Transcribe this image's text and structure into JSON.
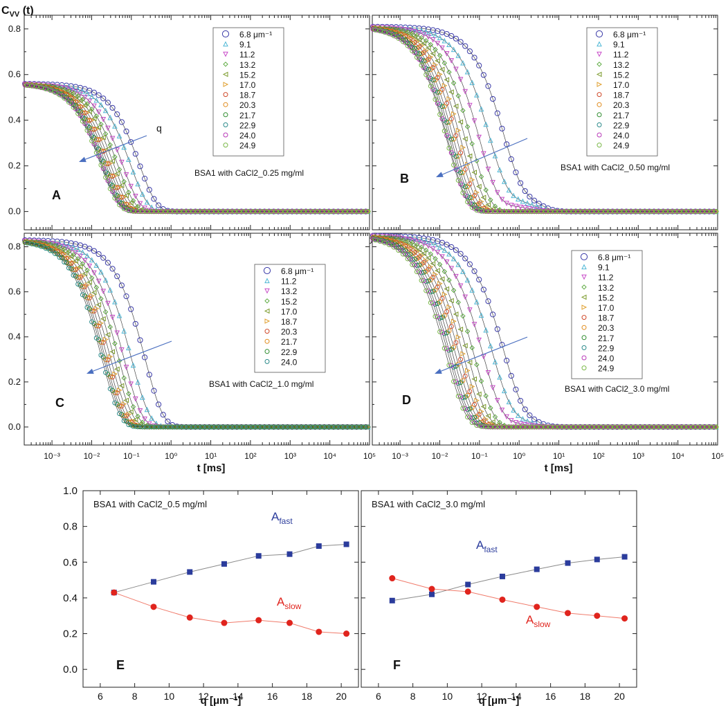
{
  "figure": {
    "y_axis_title": "C",
    "y_axis_title_sub": "VV",
    "y_axis_title_suffix": " (t)",
    "x_axis_title_top": "t [ms]",
    "x_axis_title_bottom": "q [μm⁻¹]"
  },
  "chart_data": [
    {
      "type": "scatter",
      "panel": "A",
      "title": "BSA1 with CaCl2_0.25 mg/ml",
      "xscale": "log",
      "xlim": [
        0.0002,
        100000
      ],
      "ylim": [
        -0.08,
        0.86
      ],
      "yticks": [
        "0.0",
        "0.2",
        "0.4",
        "0.6",
        "0.8"
      ],
      "xticks": [
        "10⁻³",
        "10⁻²",
        "10⁻¹",
        "10⁰",
        "10¹",
        "10²",
        "10³",
        "10⁴",
        "10⁵"
      ],
      "arrow_label": "q",
      "legend_unit": "μm⁻¹",
      "legend": [
        "6.8",
        "9.1",
        "11.2",
        "13.2",
        "15.2",
        "17.0",
        "18.7",
        "20.3",
        "21.7",
        "22.9",
        "24.0",
        "24.9"
      ],
      "amplitude": 0.56,
      "tau_ms": [
        0.16,
        0.095,
        0.06,
        0.045,
        0.036,
        0.03,
        0.026,
        0.023,
        0.021,
        0.019,
        0.018,
        0.017
      ],
      "beta": 1.0,
      "slow_amplitude": 0,
      "slow_tau_ms": 1
    },
    {
      "type": "scatter",
      "panel": "B",
      "title": "BSA1 with CaCl2_0.50 mg/ml",
      "xscale": "log",
      "xlim": [
        0.0002,
        100000
      ],
      "ylim": [
        -0.08,
        0.86
      ],
      "yticks": [],
      "xticks": [],
      "arrow_label": "",
      "legend_unit": "μm⁻¹",
      "legend": [
        "6.8",
        "9.1",
        "11.2",
        "13.2",
        "15.2",
        "17.0",
        "18.7",
        "20.3",
        "21.7",
        "22.9",
        "24.0",
        "24.9"
      ],
      "amplitude": 0.81,
      "tau_ms": [
        0.38,
        0.17,
        0.1,
        0.065,
        0.047,
        0.036,
        0.029,
        0.024,
        0.021,
        0.019,
        0.017,
        0.016
      ],
      "beta": 0.95,
      "slow_amplitude": 0.12,
      "slow_tau_ms": 2.5
    },
    {
      "type": "scatter",
      "panel": "C",
      "title": "BSA1 with CaCl2_1.0 mg/ml",
      "xscale": "log",
      "xlim": [
        0.0002,
        100000
      ],
      "ylim": [
        -0.08,
        0.86
      ],
      "yticks": [
        "0.0",
        "0.2",
        "0.4",
        "0.6",
        "0.8"
      ],
      "xticks": [
        "10⁻³",
        "10⁻²",
        "10⁻¹",
        "10⁰",
        "10¹",
        "10²",
        "10³",
        "10⁴",
        "10⁵"
      ],
      "arrow_label": "",
      "legend_unit": "μm⁻¹",
      "legend": [
        "6.8",
        "11.2",
        "13.2",
        "15.2",
        "17.0",
        "18.7",
        "20.3",
        "21.7",
        "22.9",
        "24.0"
      ],
      "amplitude": 0.83,
      "tau_ms": [
        0.22,
        0.1,
        0.065,
        0.048,
        0.037,
        0.03,
        0.025,
        0.022,
        0.02,
        0.018
      ],
      "beta": 0.95,
      "slow_amplitude": 0,
      "slow_tau_ms": 1
    },
    {
      "type": "scatter",
      "panel": "D",
      "title": "BSA1 with CaCl2_3.0 mg/ml",
      "xscale": "log",
      "xlim": [
        0.0002,
        100000
      ],
      "ylim": [
        -0.08,
        0.86
      ],
      "yticks": [],
      "xticks": [
        "10⁻³",
        "10⁻²",
        "10⁻¹",
        "10⁰",
        "10¹",
        "10²",
        "10³",
        "10⁴",
        "10⁵"
      ],
      "arrow_label": "",
      "legend_unit": "μm⁻¹",
      "legend": [
        "6.8",
        "9.1",
        "11.2",
        "13.2",
        "15.2",
        "17.0",
        "18.7",
        "20.3",
        "21.7",
        "22.9",
        "24.0",
        "24.9"
      ],
      "amplitude": 0.85,
      "tau_ms": [
        0.38,
        0.2,
        0.12,
        0.075,
        0.052,
        0.04,
        0.032,
        0.026,
        0.022,
        0.019,
        0.017,
        0.015
      ],
      "beta": 0.9,
      "slow_amplitude": 0.1,
      "slow_tau_ms": 2.0
    },
    {
      "type": "line",
      "panel": "E",
      "title": "BSA1 with CaCl2_0.5 mg/ml",
      "xlim": [
        5,
        21
      ],
      "ylim": [
        -0.1,
        1.0
      ],
      "xticks": [
        "6",
        "8",
        "10",
        "12",
        "14",
        "16",
        "18",
        "20"
      ],
      "yticks": [
        "0.0",
        "0.2",
        "0.4",
        "0.6",
        "0.8",
        "1.0"
      ],
      "xlabel": "q [μm⁻¹]",
      "series": [
        {
          "name": "A",
          "sub": "fast",
          "color": "#2b3c9c",
          "marker": "square",
          "x": [
            6.8,
            9.1,
            11.2,
            13.2,
            15.2,
            17.0,
            18.7,
            20.3
          ],
          "y": [
            0.43,
            0.49,
            0.545,
            0.59,
            0.635,
            0.645,
            0.69,
            0.7
          ]
        },
        {
          "name": "A",
          "sub": "slow",
          "color": "#e0241d",
          "marker": "circle",
          "x": [
            6.8,
            9.1,
            11.2,
            13.2,
            15.2,
            17.0,
            18.7,
            20.3
          ],
          "y": [
            0.43,
            0.35,
            0.29,
            0.26,
            0.275,
            0.26,
            0.21,
            0.2
          ]
        }
      ]
    },
    {
      "type": "line",
      "panel": "F",
      "title": "BSA1 with CaCl2_3.0 mg/ml",
      "xlim": [
        5,
        21
      ],
      "ylim": [
        -0.1,
        1.0
      ],
      "xticks": [
        "6",
        "8",
        "10",
        "12",
        "14",
        "16",
        "18",
        "20"
      ],
      "yticks": [],
      "xlabel": "q [μm⁻¹]",
      "series": [
        {
          "name": "A",
          "sub": "fast",
          "color": "#2b3c9c",
          "marker": "square",
          "x": [
            6.8,
            9.1,
            11.2,
            13.2,
            15.2,
            17.0,
            18.7,
            20.3
          ],
          "y": [
            0.385,
            0.42,
            0.475,
            0.52,
            0.56,
            0.595,
            0.615,
            0.63
          ]
        },
        {
          "name": "A",
          "sub": "slow",
          "color": "#e0241d",
          "marker": "circle",
          "x": [
            6.8,
            9.1,
            11.2,
            13.2,
            15.2,
            17.0,
            18.7,
            20.3
          ],
          "y": [
            0.51,
            0.45,
            0.435,
            0.39,
            0.35,
            0.315,
            0.3,
            0.285
          ]
        }
      ]
    }
  ],
  "colors": {
    "series_palette": [
      "#3a3aa8",
      "#4fb8d6",
      "#c84bc8",
      "#58a83c",
      "#7a9a2a",
      "#e0a030",
      "#d04a2a",
      "#e08a1a",
      "#2a8a2a",
      "#2a8a8a",
      "#b838b8",
      "#7ab848"
    ],
    "arrow": "#4a6fc0",
    "fit_line": "#444444",
    "fast": "#2b3c9c",
    "slow": "#e0241d"
  }
}
